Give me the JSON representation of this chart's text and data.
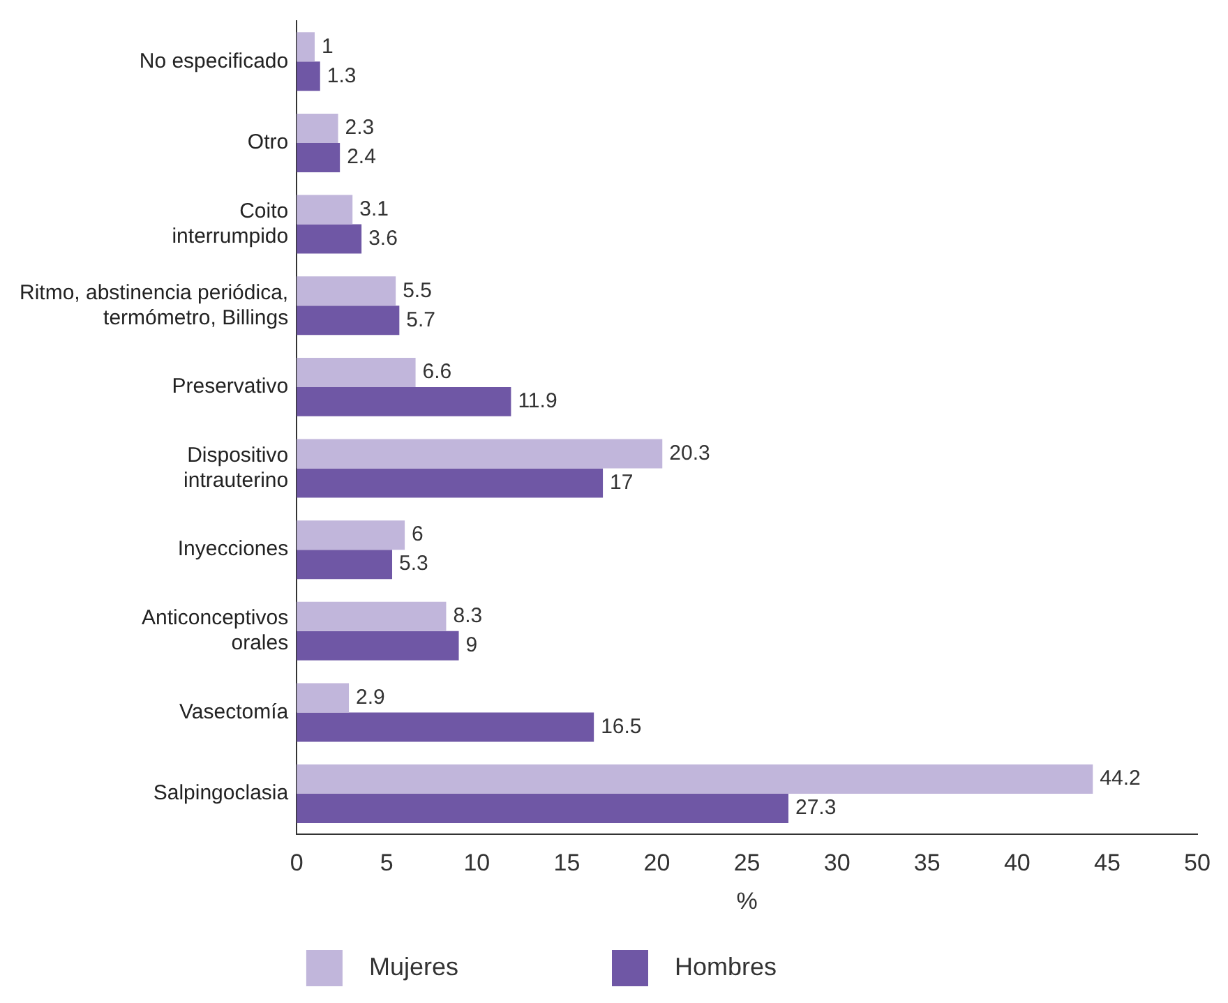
{
  "chart_data": {
    "type": "bar",
    "orientation": "horizontal",
    "categories": [
      "No especificado",
      "Otro",
      "Coito\ninterrumpido",
      "Ritmo, abstinencia periódica,\ntermómetro, Billings",
      "Preservativo",
      "Dispositivo\nintrauterino",
      "Inyecciones",
      "Anticonceptivos\norales",
      "Vasectomía",
      "Salpingoclasia"
    ],
    "series": [
      {
        "name": "Mujeres",
        "color": "#c1b6db",
        "values": [
          1,
          2.3,
          3.1,
          5.5,
          6.6,
          20.3,
          6,
          8.3,
          2.9,
          44.2
        ]
      },
      {
        "name": "Hombres",
        "color": "#6f57a5",
        "values": [
          1.3,
          2.4,
          3.6,
          5.7,
          11.9,
          17,
          5.3,
          9,
          16.5,
          27.3
        ]
      }
    ],
    "xlabel": "%",
    "xlim": [
      0,
      50
    ],
    "xticks": [
      0,
      5,
      10,
      15,
      20,
      25,
      30,
      35,
      40,
      45,
      50
    ],
    "grid": false,
    "legend": "bottom",
    "data_labels": true
  }
}
